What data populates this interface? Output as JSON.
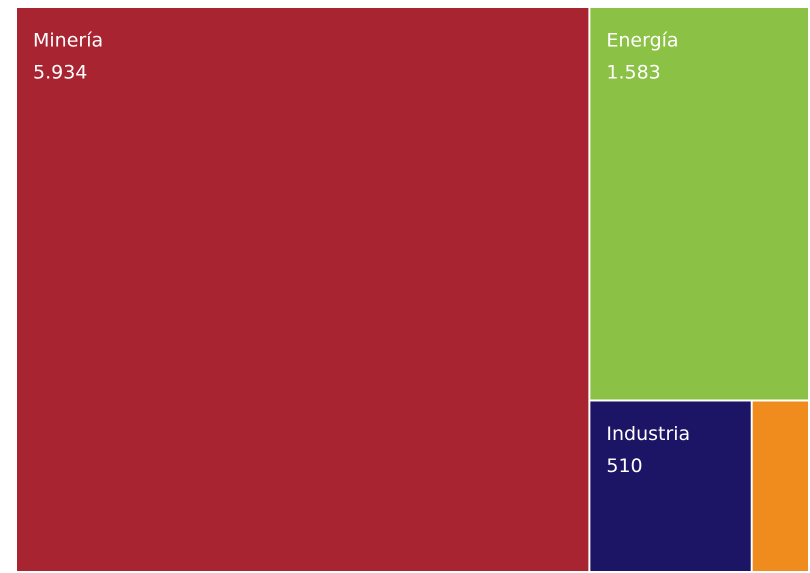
{
  "chart_data": {
    "type": "treemap",
    "categories": [
      "Minería",
      "Energía",
      "Industria",
      null
    ],
    "values": [
      5934,
      1583,
      510,
      180
    ],
    "value_labels": [
      "5.934",
      "1.583",
      "510",
      null
    ],
    "colors": [
      "#a82430",
      "#8bc145",
      "#1c1464",
      "#f08c1e"
    ]
  }
}
